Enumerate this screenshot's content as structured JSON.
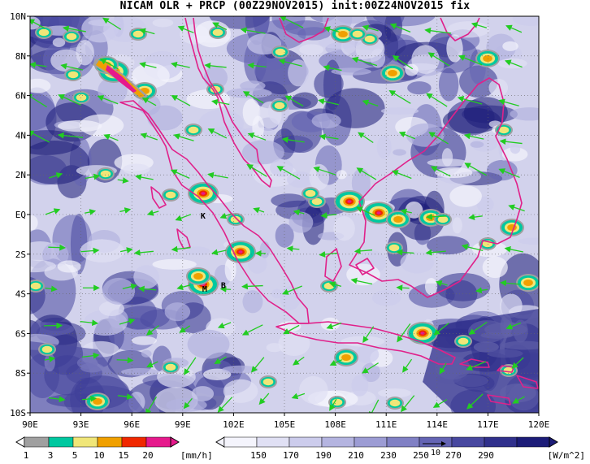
{
  "title": "NICAM OLR + PRCP (00Z29NOV2015) init:00Z24NOV2015 fix",
  "map": {
    "lon_labels": [
      "90E",
      "93E",
      "96E",
      "99E",
      "102E",
      "105E",
      "108E",
      "111E",
      "114E",
      "117E",
      "120E"
    ],
    "lat_labels": [
      "10N",
      "8N",
      "6N",
      "4N",
      "2N",
      "EQ",
      "2S",
      "4S",
      "6S",
      "8S",
      "10S"
    ],
    "place_markers": [
      {
        "text": "K",
        "lon": 100.2,
        "lat": -0.2
      },
      {
        "text": "M",
        "lon": 100.3,
        "lat": -3.9
      },
      {
        "text": "B",
        "lon": 101.4,
        "lat": -3.7
      }
    ],
    "colors": {
      "coast": "#e0218a",
      "wind": "#22cc22",
      "olr_dark": "#1c1c78",
      "olr_light": "#dcdcf0"
    }
  },
  "prcp_legend": {
    "ticks": [
      "1",
      "3",
      "5",
      "10",
      "15",
      "20"
    ],
    "unit": "[mm/h]",
    "colors": [
      "#a0a0a0",
      "#00c8a0",
      "#f0e678",
      "#f0a000",
      "#f02800",
      "#e6198c"
    ]
  },
  "olr_legend": {
    "ticks": [
      "150",
      "170",
      "190",
      "210",
      "230",
      "250",
      "270",
      "290"
    ],
    "unit": "[W/m^2]",
    "reference_vector_label": "10",
    "colors": [
      "#f4f4fc",
      "#e0e0f4",
      "#ccccec",
      "#b4b4e0",
      "#9c9cd4",
      "#8080c4",
      "#6464b4",
      "#4848a0",
      "#30308c",
      "#1c1c78"
    ]
  }
}
